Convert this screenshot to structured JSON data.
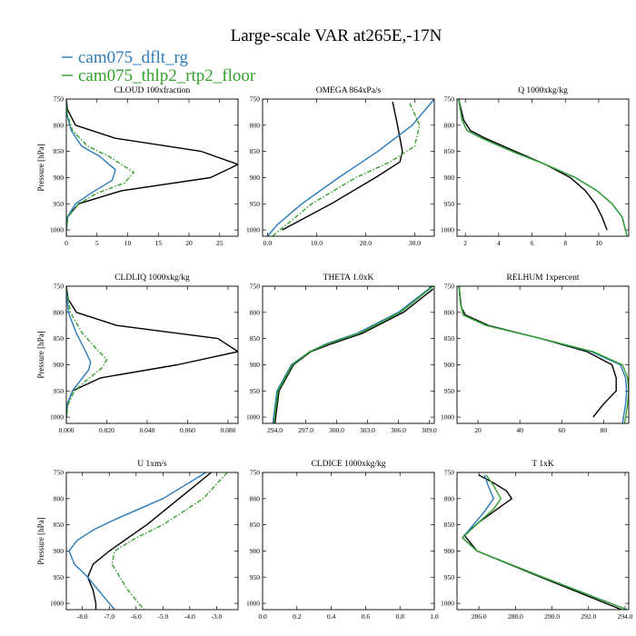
{
  "title": "Large-scale VAR at265E,-17N",
  "colors": {
    "black": "#000000",
    "blue": "#2b7bb9",
    "green": "#33a02c"
  },
  "legend": [
    {
      "label": "cam075_dflt_rg",
      "color": "#2b7bb9"
    },
    {
      "label": "cam075_thlp2_rtp2_floor",
      "color": "#33a02c"
    }
  ],
  "chart_data": [
    {
      "type": "line",
      "title": "CLOUD 100xfraction",
      "ylabel": "Pressure [hPa]",
      "xlim": [
        0,
        28
      ],
      "ylim": [
        750,
        1012
      ],
      "xticks": [
        0,
        5,
        10,
        15,
        20,
        25
      ],
      "xticklabels": [
        "0",
        "5",
        "10",
        "15",
        "20",
        "25"
      ],
      "yticks": [
        750,
        800,
        850,
        900,
        950,
        1000
      ],
      "yticklabels": [
        "750",
        "800",
        "850",
        "900",
        "950",
        "1000"
      ],
      "series": [
        {
          "color": "#000000",
          "dash": "solid",
          "p": [
            750,
            770,
            800,
            825,
            850,
            875,
            900,
            925,
            950,
            975,
            1000
          ],
          "x": [
            0,
            0.2,
            1.5,
            8,
            22,
            28,
            23.5,
            9,
            2,
            0.2,
            0
          ]
        },
        {
          "color": "#2b7bb9",
          "dash": "solid",
          "p": [
            750,
            780,
            810,
            840,
            860,
            885,
            905,
            930,
            950,
            975,
            1000
          ],
          "x": [
            0,
            0.1,
            0.8,
            2.5,
            5.5,
            8,
            7.5,
            4,
            1.5,
            0.2,
            0
          ]
        },
        {
          "color": "#33a02c",
          "dash": "dashdot",
          "p": [
            750,
            780,
            810,
            840,
            860,
            890,
            910,
            930,
            950,
            975,
            1000
          ],
          "x": [
            0,
            0.2,
            1,
            3.5,
            7,
            11,
            9.5,
            5,
            2,
            0.3,
            0
          ]
        }
      ]
    },
    {
      "type": "line",
      "title": "OMEGA 864xPa/s",
      "ylabel": "",
      "xlim": [
        -1,
        34
      ],
      "ylim": [
        750,
        1012
      ],
      "xticks": [
        0,
        10,
        20,
        30
      ],
      "xticklabels": [
        "0.0",
        "10.0",
        "20.0",
        "30.0"
      ],
      "yticks": [
        750,
        800,
        850,
        900,
        950,
        1000
      ],
      "yticklabels": [
        "750",
        "800",
        "850",
        "900",
        "950",
        "1000"
      ],
      "series": [
        {
          "color": "#000000",
          "dash": "solid",
          "p": [
            755,
            800,
            850,
            870,
            900,
            950,
            1000
          ],
          "x": [
            25.5,
            26.5,
            27.5,
            27,
            22,
            13,
            3
          ]
        },
        {
          "color": "#2b7bb9",
          "dash": "solid",
          "p": [
            750,
            800,
            850,
            900,
            950,
            990,
            1012
          ],
          "x": [
            34,
            29.5,
            22.5,
            14.5,
            7,
            2,
            0
          ]
        },
        {
          "color": "#33a02c",
          "dash": "dashdot",
          "p": [
            758,
            800,
            840,
            870,
            900,
            950,
            1012
          ],
          "x": [
            29,
            31,
            30,
            25,
            18,
            9,
            1
          ]
        }
      ]
    },
    {
      "type": "line",
      "title": "Q 1000xkg/kg",
      "ylabel": "",
      "xlim": [
        1.5,
        11.8
      ],
      "ylim": [
        750,
        1012
      ],
      "xticks": [
        2,
        4,
        6,
        8,
        10
      ],
      "xticklabels": [
        "2",
        "4",
        "6",
        "8",
        "10"
      ],
      "yticks": [
        750,
        800,
        850,
        900,
        950,
        1000
      ],
      "yticklabels": [
        "750",
        "800",
        "850",
        "900",
        "950",
        "1000"
      ],
      "series": [
        {
          "color": "#000000",
          "dash": "solid",
          "p": [
            750,
            790,
            810,
            825,
            850,
            875,
            900,
            925,
            950,
            975,
            1000
          ],
          "x": [
            1.6,
            1.9,
            2.3,
            3.2,
            5,
            6.8,
            8.3,
            9.2,
            9.8,
            10.2,
            10.5
          ]
        },
        {
          "color": "#2b7bb9",
          "dash": "solid",
          "p": [
            750,
            790,
            810,
            825,
            850,
            875,
            900,
            925,
            950,
            975,
            1012
          ],
          "x": [
            1.6,
            1.8,
            2.1,
            3,
            4.8,
            6.8,
            8.6,
            9.9,
            10.8,
            11.4,
            11.7
          ]
        },
        {
          "color": "#33a02c",
          "dash": "solid",
          "p": [
            750,
            790,
            810,
            825,
            850,
            875,
            900,
            925,
            950,
            975,
            1012
          ],
          "x": [
            1.6,
            1.8,
            2.1,
            3,
            4.8,
            6.8,
            8.6,
            9.9,
            10.8,
            11.4,
            11.7
          ]
        }
      ]
    },
    {
      "type": "line",
      "title": "CLDLIQ 1000xkg/kg",
      "ylabel": "Pressure [hPa]",
      "xlim": [
        0,
        0.085
      ],
      "ylim": [
        750,
        1012
      ],
      "xticks": [
        0,
        0.02,
        0.04,
        0.06,
        0.08
      ],
      "xticklabels": [
        "0.000",
        "0.020",
        "0.040",
        "0.060",
        "0.080"
      ],
      "yticks": [
        750,
        800,
        850,
        900,
        950,
        1000
      ],
      "yticklabels": [
        "750",
        "800",
        "850",
        "900",
        "950",
        "1000"
      ],
      "series": [
        {
          "color": "#000000",
          "dash": "solid",
          "p": [
            750,
            775,
            800,
            825,
            850,
            875,
            900,
            925,
            950,
            975,
            1000
          ],
          "x": [
            0,
            0.001,
            0.005,
            0.025,
            0.075,
            0.085,
            0.055,
            0.017,
            0.003,
            0.0005,
            0
          ]
        },
        {
          "color": "#2b7bb9",
          "dash": "solid",
          "p": [
            750,
            800,
            840,
            870,
            895,
            910,
            930,
            950,
            975,
            1000
          ],
          "x": [
            0,
            0.001,
            0.005,
            0.009,
            0.012,
            0.011,
            0.007,
            0.003,
            0.0005,
            0
          ]
        },
        {
          "color": "#33a02c",
          "dash": "dashdot",
          "p": [
            750,
            800,
            840,
            870,
            890,
            905,
            930,
            950,
            975,
            1000
          ],
          "x": [
            0,
            0.002,
            0.008,
            0.015,
            0.02,
            0.018,
            0.01,
            0.004,
            0.001,
            0
          ]
        }
      ]
    },
    {
      "type": "line",
      "title": "THETA 1.0xK",
      "ylabel": "",
      "xlim": [
        292.8,
        309.5
      ],
      "ylim": [
        750,
        1012
      ],
      "xticks": [
        294,
        297,
        300,
        303,
        306,
        309
      ],
      "xticklabels": [
        "294.0",
        "297.0",
        "300.0",
        "303.0",
        "306.0",
        "309.0"
      ],
      "yticks": [
        750,
        800,
        850,
        900,
        950,
        1000
      ],
      "yticklabels": [
        "750",
        "800",
        "850",
        "900",
        "950",
        "1000"
      ],
      "series": [
        {
          "color": "#000000",
          "dash": "solid",
          "p": [
            755,
            800,
            840,
            860,
            875,
            900,
            950,
            1012
          ],
          "x": [
            309.4,
            306.5,
            302.5,
            299.5,
            297.5,
            295.8,
            294.4,
            294
          ]
        },
        {
          "color": "#2b7bb9",
          "dash": "solid",
          "p": [
            750,
            800,
            840,
            860,
            875,
            900,
            950,
            1012
          ],
          "x": [
            309.3,
            306,
            302,
            299,
            297.4,
            295.6,
            294.2,
            293.8
          ]
        },
        {
          "color": "#33a02c",
          "dash": "solid",
          "p": [
            750,
            800,
            840,
            860,
            875,
            900,
            950,
            1012
          ],
          "x": [
            309.4,
            306.2,
            302.2,
            299.2,
            297.4,
            295.7,
            294.3,
            293.9
          ]
        }
      ]
    },
    {
      "type": "line",
      "title": "RELHUM 1xpercent",
      "ylabel": "",
      "xlim": [
        10,
        92
      ],
      "ylim": [
        750,
        1012
      ],
      "xticks": [
        20,
        40,
        60,
        80
      ],
      "xticklabels": [
        "20",
        "40",
        "60",
        "80"
      ],
      "yticks": [
        750,
        800,
        850,
        900,
        950,
        1000
      ],
      "yticklabels": [
        "750",
        "800",
        "850",
        "900",
        "950",
        "1000"
      ],
      "series": [
        {
          "color": "#000000",
          "dash": "solid",
          "p": [
            750,
            790,
            805,
            825,
            850,
            875,
            900,
            925,
            950,
            975,
            1000
          ],
          "x": [
            11,
            12,
            14,
            25,
            50,
            72,
            84,
            86,
            86,
            80,
            75
          ]
        },
        {
          "color": "#2b7bb9",
          "dash": "solid",
          "p": [
            750,
            780,
            805,
            825,
            850,
            875,
            900,
            925,
            950,
            975,
            1012
          ],
          "x": [
            11,
            11.5,
            13,
            24,
            50,
            74,
            88,
            90.5,
            91,
            90.5,
            89
          ]
        },
        {
          "color": "#33a02c",
          "dash": "solid",
          "p": [
            750,
            780,
            805,
            825,
            850,
            875,
            900,
            925,
            950,
            975,
            1012
          ],
          "x": [
            11,
            11.5,
            13,
            24,
            50,
            75,
            89,
            91.5,
            92,
            91.5,
            90
          ]
        }
      ]
    },
    {
      "type": "line",
      "title": "U 1xm/s",
      "ylabel": "Pressure [hPa]",
      "xlim": [
        -8.6,
        -2.2
      ],
      "ylim": [
        750,
        1012
      ],
      "xticks": [
        -8,
        -7,
        -6,
        -5,
        -4,
        -3
      ],
      "xticklabels": [
        "-8.0",
        "-7.0",
        "-6.0",
        "-5.0",
        "-4.0",
        "-3.0"
      ],
      "yticks": [
        750,
        800,
        850,
        900,
        950,
        1000
      ],
      "yticklabels": [
        "750",
        "800",
        "850",
        "900",
        "950",
        "1000"
      ],
      "series": [
        {
          "color": "#000000",
          "dash": "solid",
          "p": [
            750,
            800,
            850,
            875,
            900,
            925,
            950,
            975,
            1000,
            1012
          ],
          "x": [
            -3.2,
            -4.4,
            -5.6,
            -6.3,
            -7,
            -7.6,
            -7.8,
            -7.6,
            -7.5,
            -7.5
          ]
        },
        {
          "color": "#2b7bb9",
          "dash": "solid",
          "p": [
            750,
            800,
            840,
            860,
            880,
            900,
            925,
            950,
            975,
            1000,
            1012
          ],
          "x": [
            -3.4,
            -5,
            -6.8,
            -7.6,
            -8.2,
            -8.5,
            -8.3,
            -7.8,
            -7.4,
            -7,
            -6.8
          ]
        },
        {
          "color": "#33a02c",
          "dash": "dashdot",
          "p": [
            750,
            800,
            850,
            875,
            900,
            925,
            950,
            975,
            1000,
            1012
          ],
          "x": [
            -2.6,
            -3.5,
            -5,
            -6,
            -6.8,
            -6.9,
            -6.6,
            -6.3,
            -5.9,
            -5.7
          ]
        }
      ]
    },
    {
      "type": "line",
      "title": "CLDICE 1000xkg/kg",
      "ylabel": "",
      "xlim": [
        0,
        1
      ],
      "ylim": [
        750,
        1012
      ],
      "xticks": [
        0,
        0.2,
        0.4,
        0.6,
        0.8,
        1.0
      ],
      "xticklabels": [
        "0.0",
        "0.2",
        "0.4",
        "0.6",
        "0.8",
        "1.0"
      ],
      "yticks": [
        750,
        800,
        850,
        900,
        950,
        1000
      ],
      "yticklabels": [
        "750",
        "800",
        "850",
        "900",
        "950",
        "1000"
      ],
      "series": []
    },
    {
      "type": "line",
      "title": "T 1xK",
      "ylabel": "",
      "xlim": [
        284.8,
        294.2
      ],
      "ylim": [
        750,
        1012
      ],
      "xticks": [
        286,
        288,
        290,
        292,
        294
      ],
      "xticklabels": [
        "286.0",
        "288.0",
        "290.0",
        "292.0",
        "294.0"
      ],
      "yticks": [
        750,
        800,
        850,
        900,
        950,
        1000
      ],
      "yticklabels": [
        "750",
        "800",
        "850",
        "900",
        "950",
        "1000"
      ],
      "series": [
        {
          "color": "#000000",
          "dash": "solid",
          "p": [
            755,
            770,
            785,
            800,
            820,
            845,
            870,
            900,
            950,
            1012
          ],
          "x": [
            286,
            286.8,
            287.5,
            287.8,
            287,
            286,
            285.2,
            285.9,
            289.4,
            293.8
          ]
        },
        {
          "color": "#2b7bb9",
          "dash": "solid",
          "p": [
            755,
            775,
            800,
            825,
            850,
            875,
            900,
            950,
            1012
          ],
          "x": [
            286.3,
            286.5,
            286.8,
            286.3,
            285.7,
            285.1,
            285.9,
            289.5,
            294.1
          ]
        },
        {
          "color": "#33a02c",
          "dash": "solid",
          "p": [
            755,
            775,
            800,
            820,
            845,
            875,
            900,
            950,
            1012
          ],
          "x": [
            286.4,
            286.8,
            287.2,
            286.8,
            286,
            285.1,
            285.9,
            289.5,
            294.1
          ]
        }
      ]
    }
  ]
}
